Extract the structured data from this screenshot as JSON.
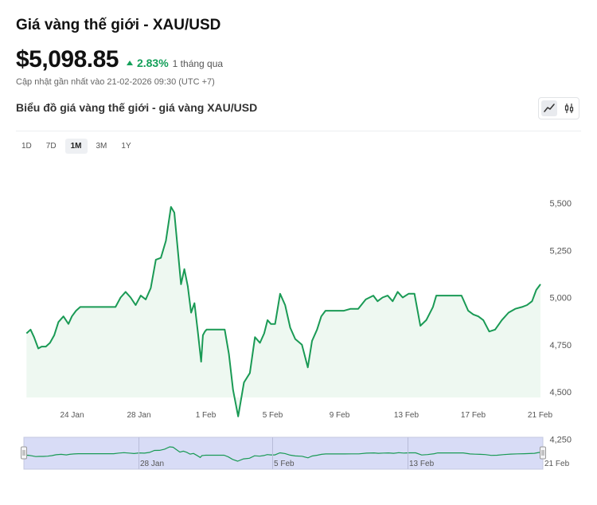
{
  "header": {
    "title": "Giá vàng thế giới - XAU/USD",
    "price": "$5,098.85",
    "change": "2.83%",
    "period": "1 tháng qua",
    "updated": "Cập nhật gần nhất vào 21-02-2026 09:30 (UTC +7)"
  },
  "chart_header": {
    "subtitle": "Biểu đồ giá vàng thế giới - giá vàng XAU/USD",
    "active_view": "line"
  },
  "range_tabs": [
    {
      "label": "1D",
      "active": false
    },
    {
      "label": "7D",
      "active": false
    },
    {
      "label": "1M",
      "active": true
    },
    {
      "label": "3M",
      "active": false
    },
    {
      "label": "1Y",
      "active": false
    }
  ],
  "colors": {
    "line": "#1a9a55",
    "area": "#eef8f1",
    "accent_up": "#14a05a",
    "navigator_fill": "#d8dcf6"
  },
  "chart_data": {
    "type": "area",
    "x_ticks": [
      "24 Jan",
      "28 Jan",
      "1 Feb",
      "5 Feb",
      "9 Feb",
      "13 Feb",
      "17 Feb",
      "21 Feb"
    ],
    "y_ticks": [
      "5,500",
      "5,250",
      "5,000",
      "4,750",
      "4,500",
      "4,250"
    ],
    "ylim": [
      4250,
      5500
    ],
    "xlim": [
      0,
      30.6
    ],
    "grid": false,
    "navigator_labels": [
      "28 Jan",
      "5 Feb",
      "13 Feb",
      "21 Feb"
    ],
    "x": [
      0,
      0.24,
      0.45,
      0.7,
      0.9,
      1.15,
      1.4,
      1.65,
      1.9,
      2.2,
      2.5,
      2.7,
      2.95,
      3.2,
      3.5,
      3.8,
      4.1,
      4.4,
      4.7,
      5,
      5.3,
      5.6,
      5.9,
      6.2,
      6.5,
      6.8,
      7.1,
      7.4,
      7.7,
      8.0,
      8.3,
      8.6,
      8.8,
      9.0,
      9.2,
      9.4,
      9.6,
      9.8,
      10.0,
      10.2,
      10.4,
      10.5,
      10.62,
      10.72,
      10.85,
      11.05,
      11.25,
      11.45,
      11.62,
      11.8,
      12.05,
      12.3,
      12.6,
      12.95,
      13.3,
      13.6,
      13.9,
      14.15,
      14.35,
      14.55,
      14.8,
      15.1,
      15.4,
      15.7,
      16.0,
      16.4,
      16.75,
      17.0,
      17.3,
      17.55,
      17.8,
      18.05,
      18.3,
      18.6,
      18.9,
      19.3,
      19.75,
      20.2,
      20.65,
      20.9,
      21.2,
      21.5,
      21.8,
      22.1,
      22.4,
      22.75,
      23.1,
      23.45,
      23.8,
      24.2,
      24.4,
      24.7,
      25.0,
      25.3,
      25.6,
      25.9,
      26.3,
      26.6,
      26.9,
      27.2,
      27.55,
      27.9,
      28.3,
      28.7,
      29.1,
      29.5,
      29.8,
      30.1,
      30.35,
      30.6
    ],
    "values": [
      4810,
      4830,
      4790,
      4730,
      4740,
      4740,
      4760,
      4800,
      4870,
      4900,
      4860,
      4900,
      4930,
      4950,
      4950,
      4950,
      4950,
      4950,
      4950,
      4950,
      4950,
      5000,
      5030,
      5000,
      4960,
      5010,
      4990,
      5050,
      5200,
      5210,
      5300,
      5480,
      5450,
      5260,
      5070,
      5150,
      5060,
      4920,
      4970,
      4820,
      4660,
      4800,
      4820,
      4830,
      4830,
      4830,
      4830,
      4830,
      4830,
      4830,
      4700,
      4510,
      4370,
      4550,
      4600,
      4790,
      4760,
      4810,
      4880,
      4860,
      4860,
      5020,
      4960,
      4840,
      4780,
      4750,
      4630,
      4770,
      4830,
      4900,
      4930,
      4930,
      4930,
      4930,
      4930,
      4940,
      4940,
      4990,
      5010,
      4980,
      5000,
      5010,
      4980,
      5030,
      5000,
      5020,
      5020,
      4850,
      4880,
      4950,
      5010,
      5010,
      5010,
      5010,
      5010,
      5010,
      4930,
      4910,
      4900,
      4880,
      4820,
      4830,
      4880,
      4920,
      4940,
      4950,
      4960,
      4980,
      5040,
      5070
    ]
  }
}
